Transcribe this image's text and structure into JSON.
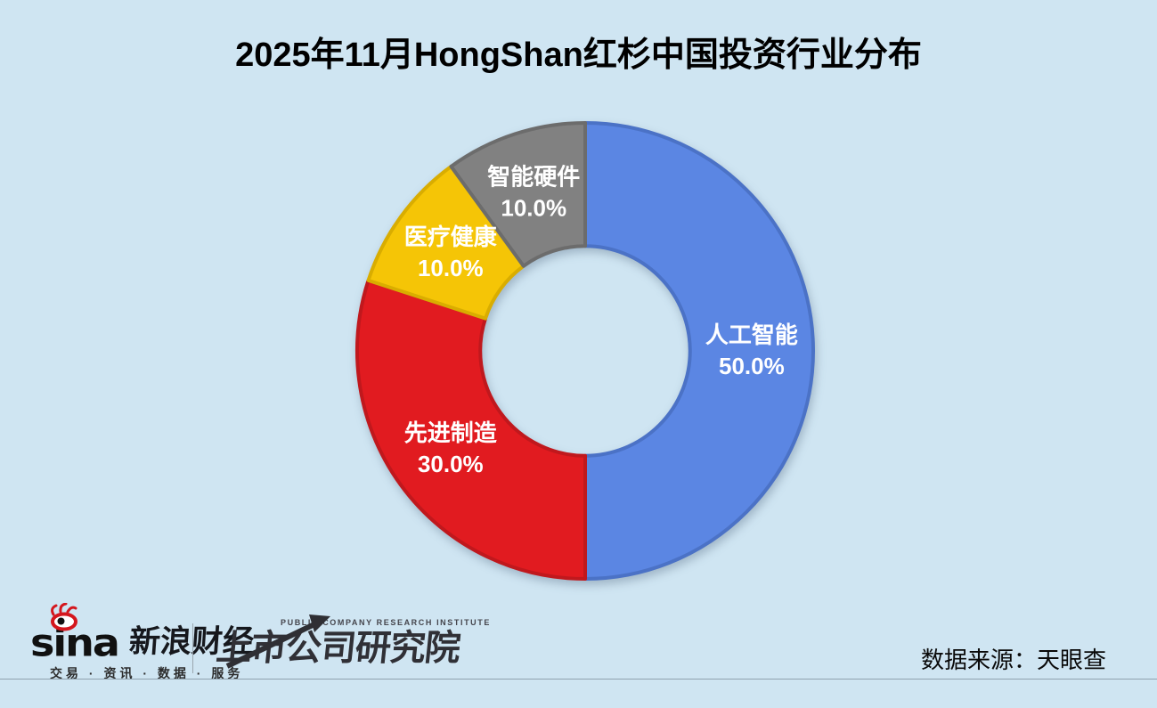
{
  "title": "2025年11月HongShan红杉中国投资行业分布",
  "background_color": "#cfe5f2",
  "chart_data": {
    "type": "pie",
    "subtype": "donut",
    "title": "2025年11月HongShan红杉中国投资行业分布",
    "start_angle_deg": 0,
    "direction": "clockwise",
    "inner_radius_ratio": 0.46,
    "categories": [
      "人工智能",
      "先进制造",
      "医疗健康",
      "智能硬件"
    ],
    "values": [
      50.0,
      30.0,
      10.0,
      10.0
    ],
    "percent_labels": [
      "50.0%",
      "30.0%",
      "10.0%",
      "10.0%"
    ],
    "colors": [
      "#5b86e3",
      "#e11b20",
      "#f5c506",
      "#818181"
    ],
    "border_colors": [
      "#4b72c6",
      "#c0181d",
      "#d9ad00",
      "#6c6c6c"
    ],
    "label_color": "#ffffff",
    "legend": "none",
    "grid": false
  },
  "footer": {
    "sina": {
      "brand": "sina",
      "name": "新浪财经",
      "tagline": "交易 · 资讯 · 数据 · 服务"
    },
    "institute": {
      "en": "PUBLIC COMPANY RESEARCH INSTITUTE",
      "cn": "上市公司研究院"
    },
    "source": "数据来源：天眼查"
  }
}
